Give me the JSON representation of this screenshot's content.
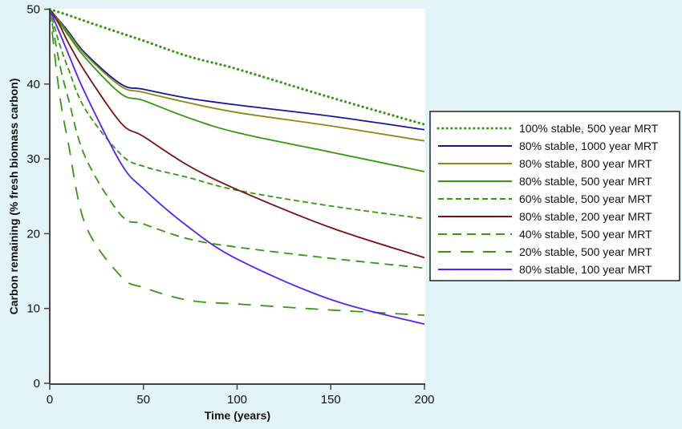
{
  "chart_data": {
    "type": "line",
    "title": "",
    "xlabel": "Time (years)",
    "ylabel": "Carbon remaining (% fresh biomass carbon)",
    "xlim": [
      0,
      200
    ],
    "ylim": [
      0,
      50
    ],
    "xticks": [
      "0",
      "50",
      "100",
      "150",
      "200"
    ],
    "yticks": [
      "0",
      "10",
      "20",
      "30",
      "40",
      "50"
    ],
    "grid": false,
    "legend_position": "right",
    "x": [
      0,
      5,
      10,
      19,
      38,
      50,
      74,
      100,
      150,
      200
    ],
    "series": [
      {
        "name": "100% stable, 500 year MRT",
        "color": "#339a10",
        "style": "dotted",
        "values": [
          50,
          49.6,
          49.2,
          48.4,
          46.8,
          45.8,
          43.7,
          42.0,
          38.2,
          34.6
        ]
      },
      {
        "name": "80% stable, 1000 year MRT",
        "color": "#14189a",
        "style": "solid",
        "values": [
          50,
          48.5,
          47.0,
          44.1,
          40.0,
          39.3,
          38.1,
          37.2,
          35.7,
          33.9
        ]
      },
      {
        "name": "80% stable, 800 year MRT",
        "color": "#8a8a12",
        "style": "solid",
        "values": [
          50,
          48.4,
          46.8,
          43.9,
          39.7,
          38.9,
          37.5,
          36.2,
          34.4,
          32.4
        ]
      },
      {
        "name": "80% stable, 500 year MRT",
        "color": "#339a10",
        "style": "solid",
        "values": [
          50,
          48.3,
          46.5,
          43.5,
          38.7,
          37.8,
          35.5,
          33.5,
          30.9,
          28.3
        ]
      },
      {
        "name": "60% stable, 500 year MRT",
        "color": "#339a10",
        "style": "short-dash",
        "values": [
          50,
          45.5,
          42.0,
          36.6,
          30.6,
          29.0,
          27.5,
          25.8,
          23.7,
          22.0
        ]
      },
      {
        "name": "80% stable, 200 year MRT",
        "color": "#7a1010",
        "style": "solid",
        "values": [
          50,
          48.0,
          45.5,
          41.6,
          34.8,
          33.0,
          29.1,
          25.9,
          20.8,
          16.8
        ]
      },
      {
        "name": "40% stable, 500 year MRT",
        "color": "#339a10",
        "style": "medium-dash",
        "values": [
          50,
          43.0,
          38.0,
          30.2,
          22.5,
          21.3,
          19.3,
          18.2,
          16.7,
          15.4
        ]
      },
      {
        "name": "20% stable, 500 year MRT",
        "color": "#339a10",
        "style": "long-dash",
        "values": [
          50,
          39.0,
          32.0,
          21.2,
          14.3,
          12.8,
          11.1,
          10.6,
          9.8,
          9.1
        ]
      },
      {
        "name": "80% stable, 100 year MRT",
        "color": "#5522ff",
        "style": "solid",
        "values": [
          50,
          47.0,
          44.0,
          38.7,
          29.4,
          26.0,
          20.9,
          16.6,
          11.2,
          7.9
        ]
      }
    ]
  }
}
